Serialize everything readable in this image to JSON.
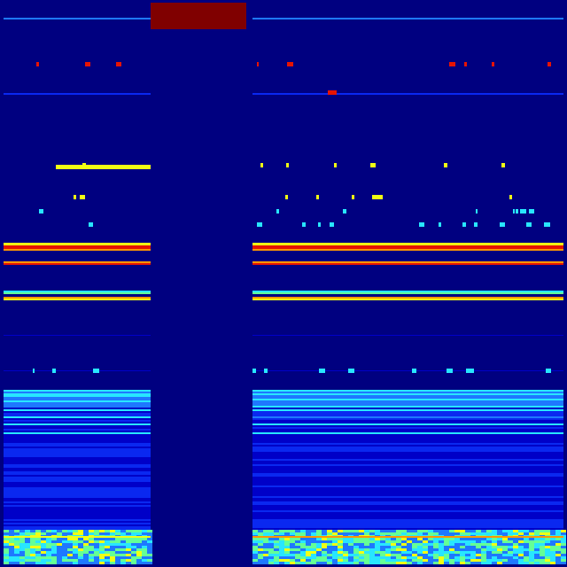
{
  "colormap": "jet",
  "colors": {
    "background": "#000080",
    "deep_blue": "#0000c8",
    "blue": "#0a28f0",
    "light_blue": "#1e78ff",
    "cyan": "#28e6ff",
    "green": "#64ff96",
    "yellow": "#f0ff14",
    "orange": "#ff9600",
    "red": "#e61400",
    "dark_red": "#800000"
  }
}
